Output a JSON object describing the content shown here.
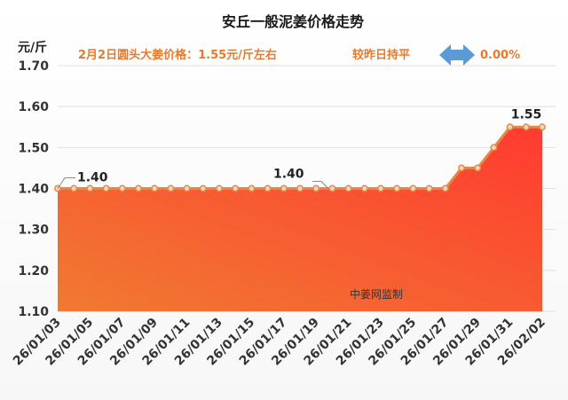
{
  "header": {
    "title": "安丘一般泥姜价格走势",
    "subtitle_price": "2月2日圆头大姜价格：1.55元/斤左右",
    "subtitle_compare": "较昨日持平",
    "subtitle_change": "0.00%",
    "unit": "元/斤",
    "watermark": "中姜网监制"
  },
  "colors": {
    "line": "#e08a4a",
    "marker_fill": "#f6d7b8",
    "area_top": "#ff3b30",
    "area_bottom": "#f07a32",
    "arrow": "#5b9bd5",
    "accent_text": "#e8792a"
  },
  "icons": {
    "change_indicator": "double-arrow-icon"
  },
  "chart_data": {
    "type": "area",
    "title": "安丘一般泥姜价格走势",
    "ylabel": "元/斤",
    "ylim": [
      1.1,
      1.7
    ],
    "yticks": [
      "1.10",
      "1.20",
      "1.30",
      "1.40",
      "1.50",
      "1.60",
      "1.70"
    ],
    "grid": true,
    "x": [
      "26/01/03",
      "26/01/04",
      "26/01/05",
      "26/01/06",
      "26/01/07",
      "26/01/08",
      "26/01/09",
      "26/01/10",
      "26/01/11",
      "26/01/12",
      "26/01/13",
      "26/01/14",
      "26/01/15",
      "26/01/16",
      "26/01/17",
      "26/01/18",
      "26/01/19",
      "26/01/20",
      "26/01/21",
      "26/01/22",
      "26/01/23",
      "26/01/24",
      "26/01/25",
      "26/01/26",
      "26/01/27",
      "26/01/28",
      "26/01/29",
      "26/01/30",
      "26/01/31",
      "26/02/01",
      "26/02/02"
    ],
    "xtick_labels": [
      "26/01/03",
      "26/01/05",
      "26/01/07",
      "26/01/09",
      "26/01/11",
      "26/01/13",
      "26/01/15",
      "26/01/17",
      "26/01/19",
      "26/01/21",
      "26/01/23",
      "26/01/25",
      "26/01/27",
      "26/01/29",
      "26/01/31",
      "26/02/02"
    ],
    "series": [
      {
        "values": [
          1.4,
          1.4,
          1.4,
          1.4,
          1.4,
          1.4,
          1.4,
          1.4,
          1.4,
          1.4,
          1.4,
          1.4,
          1.4,
          1.4,
          1.4,
          1.4,
          1.4,
          1.4,
          1.4,
          1.4,
          1.4,
          1.4,
          1.4,
          1.4,
          1.4,
          1.45,
          1.45,
          1.5,
          1.55,
          1.55,
          1.55
        ]
      }
    ],
    "data_labels": [
      {
        "index": 0,
        "text": "1.40"
      },
      {
        "index": 15,
        "text": "1.40"
      },
      {
        "index": 30,
        "text": "1.55"
      }
    ]
  }
}
